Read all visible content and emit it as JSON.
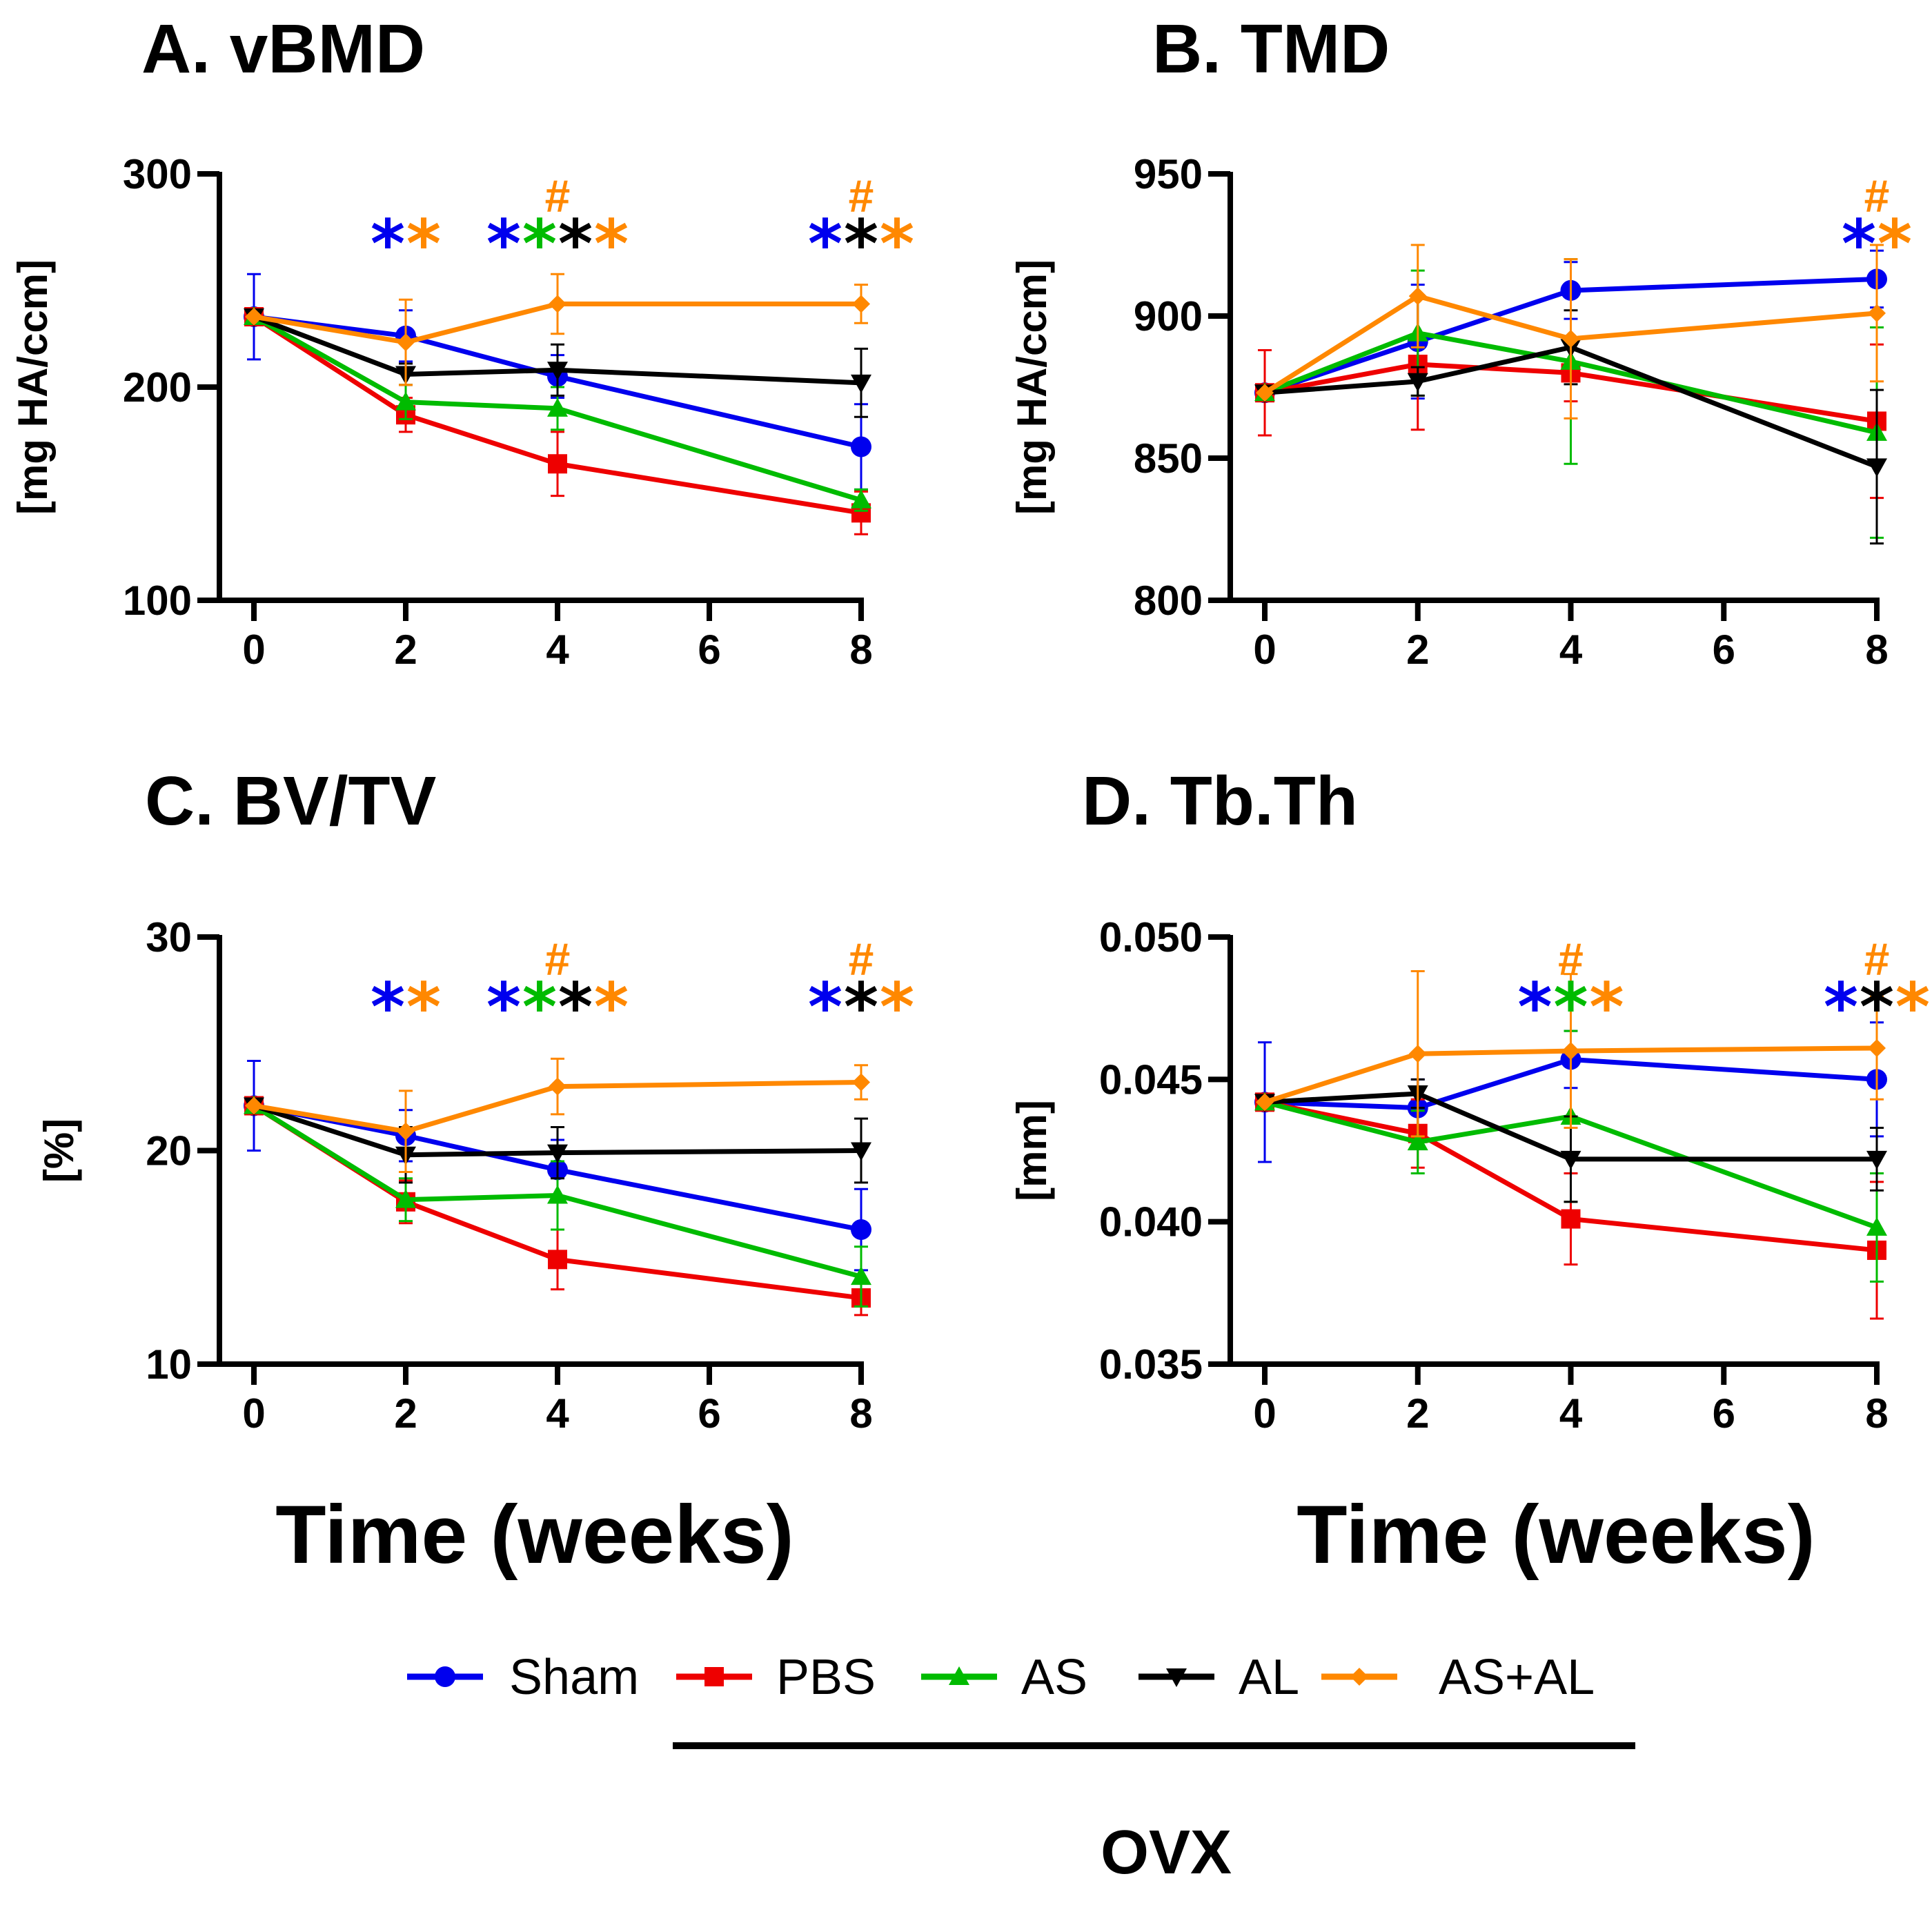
{
  "colors": {
    "Sham": "#0000ee",
    "PBS": "#ee0000",
    "AS": "#00bb00",
    "AL": "#000000",
    "AS+AL": "#ff8800"
  },
  "legend": {
    "items": [
      {
        "label": "Sham",
        "marker": "circle"
      },
      {
        "label": "PBS",
        "marker": "square"
      },
      {
        "label": "AS",
        "marker": "triangle-up"
      },
      {
        "label": "AL",
        "marker": "triangle-down"
      },
      {
        "label": "AS+AL",
        "marker": "diamond"
      }
    ],
    "group_label": "OVX"
  },
  "xlabel": "Time (weeks)",
  "chart_data": [
    {
      "type": "line",
      "title": "A. vBMD",
      "ylabel": "[mg HA/ccm]",
      "xlabel": "Time (weeks)",
      "x": [
        0,
        2,
        4,
        8
      ],
      "xticks": [
        "0",
        "2",
        "4",
        "6",
        "8"
      ],
      "xlim": [
        0,
        8
      ],
      "ylim": [
        100,
        300
      ],
      "yticks": [
        "100",
        "200",
        "300"
      ],
      "series": [
        {
          "name": "Sham",
          "values": [
            233,
            224,
            205,
            172
          ],
          "errors": [
            20,
            12,
            10,
            20
          ]
        },
        {
          "name": "PBS",
          "values": [
            233,
            187,
            164,
            141
          ],
          "errors": [
            0,
            8,
            15,
            10
          ]
        },
        {
          "name": "AS",
          "values": [
            233,
            193,
            190,
            147
          ],
          "errors": [
            0,
            8,
            10,
            5
          ]
        },
        {
          "name": "AL",
          "values": [
            233,
            206,
            208,
            202
          ],
          "errors": [
            0,
            5,
            12,
            16
          ]
        },
        {
          "name": "AS+AL",
          "values": [
            233,
            221,
            239,
            239
          ],
          "errors": [
            0,
            20,
            14,
            9
          ]
        }
      ],
      "annotations": [
        {
          "x": 2,
          "stars": [
            "Sham",
            "AS+AL"
          ],
          "hash": ""
        },
        {
          "x": 4,
          "stars": [
            "Sham",
            "AS",
            "AL",
            "AS+AL"
          ],
          "hash": "#"
        },
        {
          "x": 8,
          "stars": [
            "Sham",
            "AL",
            "AS+AL"
          ],
          "hash": "#"
        }
      ]
    },
    {
      "type": "line",
      "title": "B. TMD",
      "ylabel": "[mg HA/ccm]",
      "xlabel": "Time (weeks)",
      "x": [
        0,
        2,
        4,
        8
      ],
      "xticks": [
        "0",
        "2",
        "4",
        "6",
        "8"
      ],
      "xlim": [
        0,
        8
      ],
      "ylim": [
        800,
        950
      ],
      "yticks": [
        "800",
        "850",
        "900",
        "950"
      ],
      "series": [
        {
          "name": "Sham",
          "values": [
            873,
            891,
            909,
            913
          ],
          "errors": [
            15,
            20,
            10,
            10
          ]
        },
        {
          "name": "PBS",
          "values": [
            873,
            883,
            880,
            863
          ],
          "errors": [
            15,
            23,
            10,
            27
          ]
        },
        {
          "name": "AS",
          "values": [
            873,
            894,
            884,
            859
          ],
          "errors": [
            0,
            22,
            36,
            37
          ]
        },
        {
          "name": "AL",
          "values": [
            873,
            877,
            889,
            847
          ],
          "errors": [
            0,
            5,
            13,
            27
          ]
        },
        {
          "name": "AS+AL",
          "values": [
            873,
            907,
            892,
            901
          ],
          "errors": [
            0,
            18,
            28,
            24
          ]
        }
      ],
      "annotations": [
        {
          "x": 8,
          "stars": [
            "Sham",
            "AS+AL"
          ],
          "hash": "#"
        }
      ]
    },
    {
      "type": "line",
      "title": "C. BV/TV",
      "ylabel": "[%]",
      "xlabel": "Time (weeks)",
      "x": [
        0,
        2,
        4,
        8
      ],
      "xticks": [
        "0",
        "2",
        "4",
        "6",
        "8"
      ],
      "xlim": [
        0,
        8
      ],
      "ylim": [
        10,
        30
      ],
      "yticks": [
        "10",
        "20",
        "30"
      ],
      "series": [
        {
          "name": "Sham",
          "values": [
            22.1,
            20.7,
            19.1,
            16.3
          ],
          "errors": [
            2.1,
            1.2,
            1.4,
            1.9
          ]
        },
        {
          "name": "PBS",
          "values": [
            22.1,
            17.6,
            14.9,
            13.1
          ],
          "errors": [
            0,
            1.0,
            1.4,
            0.8
          ]
        },
        {
          "name": "AS",
          "values": [
            22.1,
            17.7,
            17.9,
            14.1
          ],
          "errors": [
            0,
            1.0,
            1.6,
            1.4
          ]
        },
        {
          "name": "AL",
          "values": [
            22.1,
            19.8,
            19.9,
            20.0
          ],
          "errors": [
            0,
            1.3,
            1.2,
            1.5
          ]
        },
        {
          "name": "AS+AL",
          "values": [
            22.1,
            20.9,
            23.0,
            23.2
          ],
          "errors": [
            0,
            1.9,
            1.3,
            0.8
          ]
        }
      ],
      "annotations": [
        {
          "x": 2,
          "stars": [
            "Sham",
            "AS+AL"
          ],
          "hash": ""
        },
        {
          "x": 4,
          "stars": [
            "Sham",
            "AS",
            "AL",
            "AS+AL"
          ],
          "hash": "#"
        },
        {
          "x": 8,
          "stars": [
            "Sham",
            "AL",
            "AS+AL"
          ],
          "hash": "#"
        }
      ]
    },
    {
      "type": "line",
      "title": "D. Tb.Th",
      "ylabel": "[mm]",
      "xlabel": "Time (weeks)",
      "x": [
        0,
        2,
        4,
        8
      ],
      "xticks": [
        "0",
        "2",
        "4",
        "6",
        "8"
      ],
      "xlim": [
        0,
        8
      ],
      "ylim": [
        0.035,
        0.05
      ],
      "yticks": [
        "0.035",
        "0.040",
        "0.045",
        "0.050"
      ],
      "series": [
        {
          "name": "Sham",
          "values": [
            0.0442,
            0.044,
            0.0457,
            0.045
          ],
          "errors": [
            0.0021,
            0.001,
            0.001,
            0.002
          ]
        },
        {
          "name": "PBS",
          "values": [
            0.0442,
            0.0431,
            0.0401,
            0.039
          ],
          "errors": [
            0,
            0.0012,
            0.0016,
            0.0024
          ]
        },
        {
          "name": "AS",
          "values": [
            0.0442,
            0.0428,
            0.0437,
            0.0398
          ],
          "errors": [
            0,
            0.0011,
            0.003,
            0.0019
          ]
        },
        {
          "name": "AL",
          "values": [
            0.0442,
            0.0445,
            0.0422,
            0.0422
          ],
          "errors": [
            0,
            0.0005,
            0.0015,
            0.0011
          ]
        },
        {
          "name": "AS+AL",
          "values": [
            0.0442,
            0.0459,
            0.046,
            0.0461
          ],
          "errors": [
            0,
            0.0029,
            0.0027,
            0.0018
          ]
        }
      ],
      "annotations": [
        {
          "x": 4,
          "stars": [
            "Sham",
            "AS",
            "AS+AL"
          ],
          "hash": "#"
        },
        {
          "x": 8,
          "stars": [
            "Sham",
            "AL",
            "AS+AL"
          ],
          "hash": "#"
        }
      ]
    }
  ]
}
